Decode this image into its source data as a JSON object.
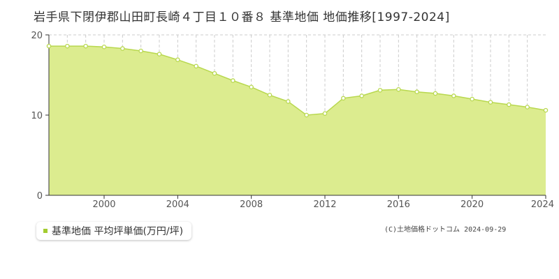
{
  "colors": {
    "area_fill": "#dcec8f",
    "line": "#b8d84e",
    "marker_stroke": "#b8d84e",
    "marker_fill": "#ffffff",
    "grid": "#cccccc",
    "axis": "#333333",
    "legend_swatch": "#a3cc30"
  },
  "legend": {
    "label": "基準地価 平均坪単価(万円/坪)"
  },
  "credit": "(C)土地価格ドットコム 2024-09-29",
  "chart_data": {
    "type": "area",
    "title": "岩手県下閉伊郡山田町長崎４丁目１０番８ 基準地価 地価推移[1997-2024]",
    "xlabel": "",
    "ylabel": "",
    "xlim": [
      1997,
      2024
    ],
    "ylim": [
      0,
      20
    ],
    "x_ticks": [
      2000,
      2004,
      2008,
      2012,
      2016,
      2020,
      2024
    ],
    "y_ticks": [
      0,
      10,
      20
    ],
    "grid": "vertical dashed per year",
    "legend_position": "bottom-left",
    "series": [
      {
        "name": "基準地価 平均坪単価(万円/坪)",
        "x": [
          1997,
          1998,
          1999,
          2000,
          2001,
          2002,
          2003,
          2004,
          2005,
          2006,
          2007,
          2008,
          2009,
          2010,
          2011,
          2012,
          2013,
          2014,
          2015,
          2016,
          2017,
          2018,
          2019,
          2020,
          2021,
          2022,
          2023,
          2024
        ],
        "values": [
          18.6,
          18.6,
          18.6,
          18.5,
          18.3,
          18.0,
          17.6,
          16.9,
          16.1,
          15.2,
          14.3,
          13.5,
          12.5,
          11.7,
          10.0,
          10.2,
          12.1,
          12.4,
          13.1,
          13.2,
          12.9,
          12.7,
          12.4,
          12.0,
          11.6,
          11.3,
          11.0,
          10.6
        ]
      }
    ]
  }
}
